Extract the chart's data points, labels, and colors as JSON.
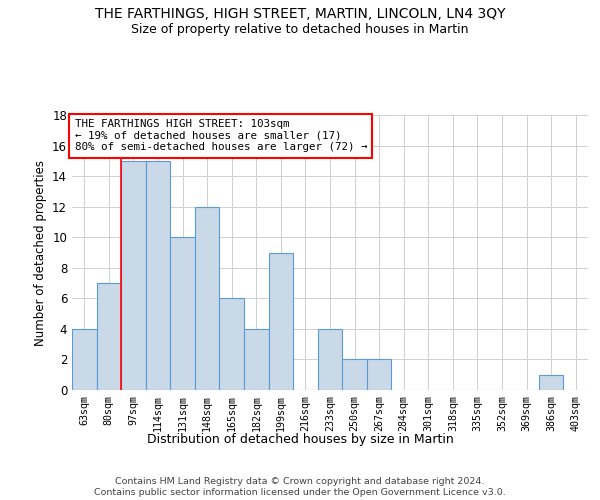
{
  "title": "THE FARTHINGS, HIGH STREET, MARTIN, LINCOLN, LN4 3QY",
  "subtitle": "Size of property relative to detached houses in Martin",
  "xlabel": "Distribution of detached houses by size in Martin",
  "ylabel": "Number of detached properties",
  "categories": [
    "63sqm",
    "80sqm",
    "97sqm",
    "114sqm",
    "131sqm",
    "148sqm",
    "165sqm",
    "182sqm",
    "199sqm",
    "216sqm",
    "233sqm",
    "250sqm",
    "267sqm",
    "284sqm",
    "301sqm",
    "318sqm",
    "335sqm",
    "352sqm",
    "369sqm",
    "386sqm",
    "403sqm"
  ],
  "values": [
    4,
    7,
    15,
    15,
    10,
    12,
    6,
    4,
    9,
    0,
    4,
    2,
    2,
    0,
    0,
    0,
    0,
    0,
    0,
    1,
    0
  ],
  "bar_color": "#c9d9e8",
  "bar_edge_color": "#5b9bd5",
  "red_line_index": 2,
  "ylim": [
    0,
    18
  ],
  "yticks": [
    0,
    2,
    4,
    6,
    8,
    10,
    12,
    14,
    16,
    18
  ],
  "annotation_line1": "THE FARTHINGS HIGH STREET: 103sqm",
  "annotation_line2": "← 19% of detached houses are smaller (17)",
  "annotation_line3": "80% of semi-detached houses are larger (72) →",
  "footer_line1": "Contains HM Land Registry data © Crown copyright and database right 2024.",
  "footer_line2": "Contains public sector information licensed under the Open Government Licence v3.0.",
  "background_color": "#ffffff",
  "grid_color": "#d0d0d0"
}
